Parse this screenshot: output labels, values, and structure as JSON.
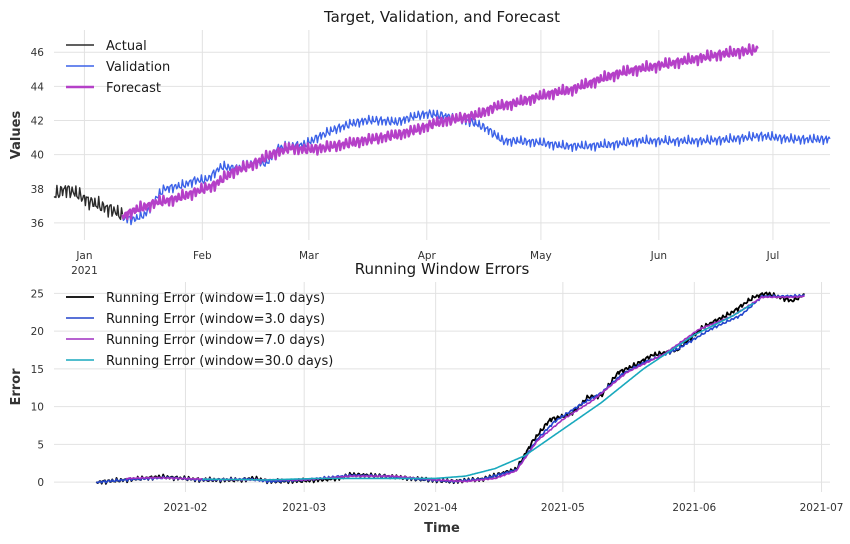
{
  "chart_data": [
    {
      "type": "line",
      "title": "Target, Validation, and Forecast",
      "xlabel": "",
      "ylabel": "Values",
      "xlim": [
        "2020-12-24",
        "2021-07-16"
      ],
      "ylim": [
        35.0,
        47.3
      ],
      "yticks": [
        36,
        38,
        40,
        42,
        44,
        46
      ],
      "xtick_labels": [
        {
          "date": "2021-01-01",
          "label": "Jan",
          "sub": "2021"
        },
        {
          "date": "2021-02-01",
          "label": "Feb",
          "sub": ""
        },
        {
          "date": "2021-03-01",
          "label": "Mar",
          "sub": ""
        },
        {
          "date": "2021-04-01",
          "label": "Apr",
          "sub": ""
        },
        {
          "date": "2021-05-01",
          "label": "May",
          "sub": ""
        },
        {
          "date": "2021-06-01",
          "label": "Jun",
          "sub": ""
        },
        {
          "date": "2021-07-01",
          "label": "Jul",
          "sub": ""
        }
      ],
      "legend": "top-left",
      "grid": true,
      "series": [
        {
          "name": "Actual",
          "color": "#2b2b2b",
          "width": 1.4,
          "noise": 0.55,
          "x": [
            "2020-12-24",
            "2020-12-27",
            "2020-12-30",
            "2021-01-02",
            "2021-01-05",
            "2021-01-08",
            "2021-01-11"
          ],
          "y": [
            37.6,
            38.0,
            37.7,
            37.3,
            37.0,
            36.8,
            36.4
          ]
        },
        {
          "name": "Validation",
          "color": "#3c62e8",
          "width": 1.4,
          "noise": 0.35,
          "x": [
            "2021-01-11",
            "2021-01-14",
            "2021-01-17",
            "2021-01-20",
            "2021-01-22",
            "2021-01-27",
            "2021-01-30",
            "2021-02-02",
            "2021-02-06",
            "2021-02-10",
            "2021-02-14",
            "2021-02-18",
            "2021-02-21",
            "2021-02-24",
            "2021-02-28",
            "2021-03-04",
            "2021-03-08",
            "2021-03-12",
            "2021-03-16",
            "2021-03-20",
            "2021-03-24",
            "2021-03-28",
            "2021-04-01",
            "2021-04-05",
            "2021-04-09",
            "2021-04-13",
            "2021-04-17",
            "2021-04-21",
            "2021-04-25",
            "2021-05-01",
            "2021-05-07",
            "2021-05-13",
            "2021-05-20",
            "2021-05-27",
            "2021-06-04",
            "2021-06-12",
            "2021-06-20",
            "2021-06-28",
            "2021-07-06",
            "2021-07-16"
          ],
          "y": [
            36.3,
            36.2,
            36.5,
            37.5,
            38.0,
            38.2,
            38.5,
            38.5,
            39.3,
            39.2,
            39.5,
            39.5,
            40.4,
            40.5,
            40.6,
            41.1,
            41.5,
            41.8,
            42.0,
            42.0,
            41.9,
            42.2,
            42.4,
            42.3,
            42.1,
            41.9,
            41.5,
            40.8,
            40.8,
            40.7,
            40.5,
            40.5,
            40.6,
            40.8,
            40.8,
            40.8,
            40.9,
            41.1,
            40.9,
            40.9
          ]
        },
        {
          "name": "Forecast",
          "color": "#b540c8",
          "width": 2.4,
          "noise": 0.4,
          "x": [
            "2021-01-11",
            "2021-01-15",
            "2021-01-20",
            "2021-01-25",
            "2021-01-30",
            "2021-02-04",
            "2021-02-09",
            "2021-02-14",
            "2021-02-19",
            "2021-02-24",
            "2021-02-28",
            "2021-03-05",
            "2021-03-10",
            "2021-03-15",
            "2021-03-20",
            "2021-03-25",
            "2021-03-30",
            "2021-04-04",
            "2021-04-09",
            "2021-04-14",
            "2021-04-19",
            "2021-04-24",
            "2021-04-29",
            "2021-05-04",
            "2021-05-09",
            "2021-05-14",
            "2021-05-19",
            "2021-05-24",
            "2021-05-29",
            "2021-06-03",
            "2021-06-08",
            "2021-06-13",
            "2021-06-18",
            "2021-06-23",
            "2021-06-27"
          ],
          "y": [
            36.4,
            36.8,
            37.2,
            37.4,
            37.8,
            38.2,
            39.0,
            39.4,
            40.0,
            40.4,
            40.3,
            40.4,
            40.6,
            40.8,
            41.0,
            41.2,
            41.5,
            41.9,
            42.1,
            42.3,
            42.8,
            43.0,
            43.3,
            43.6,
            43.8,
            44.2,
            44.6,
            44.9,
            45.1,
            45.3,
            45.5,
            45.7,
            45.9,
            46.05,
            46.15
          ]
        }
      ]
    },
    {
      "type": "line",
      "title": "Running Window Errors",
      "xlabel": "Time",
      "ylabel": "Error",
      "xlim": [
        "2021-01-01",
        "2021-07-03"
      ],
      "ylim": [
        -1.3,
        26.5
      ],
      "yticks": [
        0,
        5,
        10,
        15,
        20,
        25
      ],
      "xtick_labels": [
        {
          "date": "2021-02-01",
          "label": "2021-02"
        },
        {
          "date": "2021-03-01",
          "label": "2021-03"
        },
        {
          "date": "2021-04-01",
          "label": "2021-04"
        },
        {
          "date": "2021-05-01",
          "label": "2021-05"
        },
        {
          "date": "2021-06-01",
          "label": "2021-06"
        },
        {
          "date": "2021-07-01",
          "label": "2021-07"
        }
      ],
      "legend": "top-left",
      "grid": true,
      "series": [
        {
          "name": "Running Error (window=1.0 days)",
          "color": "#000000",
          "width": 1.8,
          "noise": 0.35,
          "x": [
            "2021-01-11",
            "2021-01-20",
            "2021-01-26",
            "2021-01-29",
            "2021-02-05",
            "2021-02-14",
            "2021-02-17",
            "2021-02-21",
            "2021-03-01",
            "2021-03-09",
            "2021-03-12",
            "2021-03-20",
            "2021-03-28",
            "2021-04-05",
            "2021-04-12",
            "2021-04-20",
            "2021-04-24",
            "2021-04-28",
            "2021-05-03",
            "2021-05-07",
            "2021-05-10",
            "2021-05-14",
            "2021-05-18",
            "2021-05-22",
            "2021-05-28",
            "2021-06-03",
            "2021-06-10",
            "2021-06-15",
            "2021-06-18",
            "2021-06-24",
            "2021-06-27"
          ],
          "y": [
            0.0,
            0.4,
            0.7,
            0.6,
            0.3,
            0.3,
            0.5,
            0.1,
            0.2,
            0.5,
            1.0,
            0.8,
            0.4,
            0.1,
            0.4,
            1.7,
            5.5,
            8.3,
            9.0,
            11.3,
            11.4,
            14.5,
            15.5,
            16.8,
            17.5,
            20.5,
            22.5,
            24.5,
            25.0,
            24.0,
            24.8
          ]
        },
        {
          "name": "Running Error (window=3.0 days)",
          "color": "#2244cc",
          "width": 1.6,
          "noise": 0.2,
          "x": [
            "2021-01-11",
            "2021-01-20",
            "2021-01-28",
            "2021-02-05",
            "2021-02-16",
            "2021-02-21",
            "2021-03-01",
            "2021-03-12",
            "2021-03-20",
            "2021-03-28",
            "2021-04-05",
            "2021-04-12",
            "2021-04-20",
            "2021-04-25",
            "2021-04-29",
            "2021-05-05",
            "2021-05-10",
            "2021-05-15",
            "2021-05-20",
            "2021-05-28",
            "2021-06-05",
            "2021-06-12",
            "2021-06-17",
            "2021-06-22",
            "2021-06-27"
          ],
          "y": [
            0.0,
            0.4,
            0.6,
            0.3,
            0.4,
            0.1,
            0.3,
            0.9,
            0.8,
            0.4,
            0.1,
            0.4,
            1.6,
            5.7,
            8.0,
            10.2,
            11.8,
            14.3,
            15.8,
            17.6,
            20.3,
            22.1,
            24.6,
            24.6,
            24.7
          ]
        },
        {
          "name": "Running Error (window=7.0 days)",
          "color": "#9f2fc1",
          "width": 1.6,
          "noise": 0.1,
          "x": [
            "2021-01-18",
            "2021-01-25",
            "2021-02-05",
            "2021-02-16",
            "2021-03-01",
            "2021-03-12",
            "2021-03-22",
            "2021-04-01",
            "2021-04-08",
            "2021-04-15",
            "2021-04-20",
            "2021-04-25",
            "2021-05-01",
            "2021-05-08",
            "2021-05-16",
            "2021-05-25",
            "2021-06-02",
            "2021-06-10",
            "2021-06-17",
            "2021-06-24",
            "2021-06-27"
          ],
          "y": [
            0.5,
            0.6,
            0.4,
            0.3,
            0.3,
            0.8,
            0.8,
            0.3,
            0.1,
            0.5,
            1.5,
            5.5,
            8.3,
            10.8,
            14.5,
            17.0,
            20.2,
            22.0,
            24.5,
            24.5,
            24.6
          ]
        },
        {
          "name": "Running Error (window=30.0 days)",
          "color": "#19a9bd",
          "width": 1.6,
          "noise": 0.0,
          "x": [
            "2021-02-05",
            "2021-02-20",
            "2021-03-05",
            "2021-03-20",
            "2021-04-01",
            "2021-04-08",
            "2021-04-15",
            "2021-04-22",
            "2021-05-01",
            "2021-05-10",
            "2021-05-20",
            "2021-06-01",
            "2021-06-10",
            "2021-06-15"
          ],
          "y": [
            0.4,
            0.3,
            0.5,
            0.5,
            0.5,
            0.8,
            1.8,
            3.5,
            7.0,
            10.5,
            15.0,
            19.5,
            22.0,
            23.7
          ]
        }
      ]
    }
  ]
}
